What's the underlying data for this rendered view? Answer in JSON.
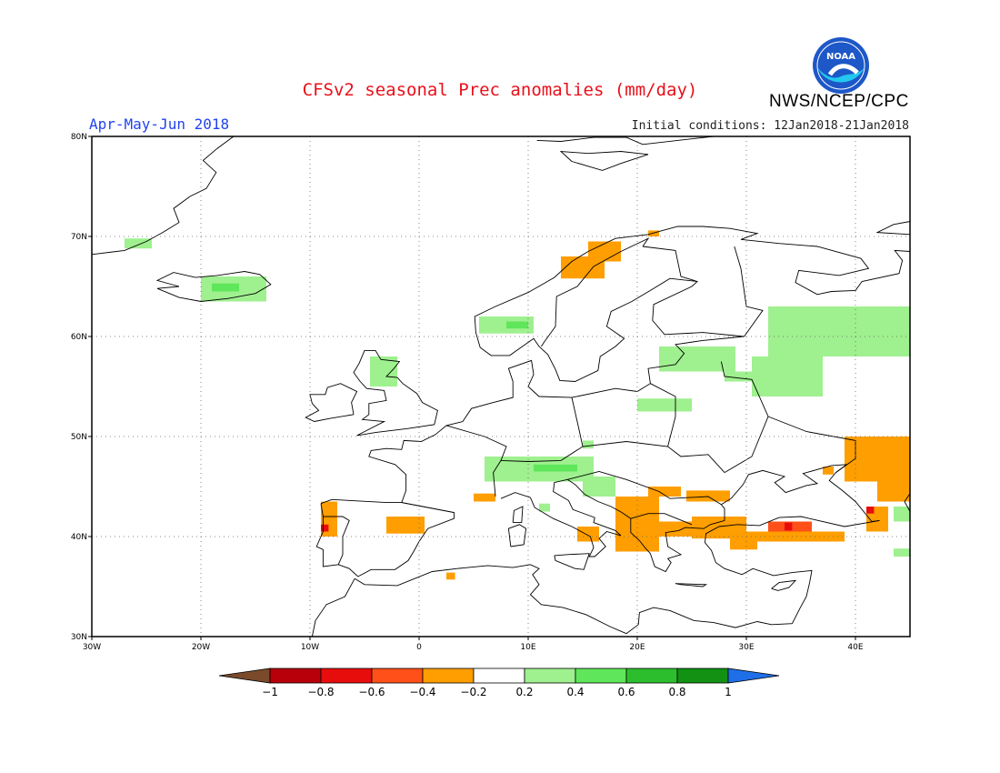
{
  "header": {
    "title": "CFSv2 seasonal Prec anomalies (mm/day)",
    "season": "Apr-May-Jun 2018",
    "initial_conditions": "Initial conditions: 12Jan2018-21Jan2018",
    "agency": "NWS/NCEP/CPC",
    "logo_text": "NOAA"
  },
  "map": {
    "lon_range": [
      -30,
      45
    ],
    "lat_range": [
      30,
      80
    ],
    "lon_ticks": [
      {
        "lon": -30,
        "label": "30W"
      },
      {
        "lon": -20,
        "label": "20W"
      },
      {
        "lon": -10,
        "label": "10W"
      },
      {
        "lon": 0,
        "label": "0"
      },
      {
        "lon": 10,
        "label": "10E"
      },
      {
        "lon": 20,
        "label": "20E"
      },
      {
        "lon": 30,
        "label": "30E"
      },
      {
        "lon": 40,
        "label": "40E"
      }
    ],
    "lat_ticks": [
      {
        "lat": 30,
        "label": "30N"
      },
      {
        "lat": 40,
        "label": "40N"
      },
      {
        "lat": 50,
        "label": "50N"
      },
      {
        "lat": 60,
        "label": "60N"
      },
      {
        "lat": 70,
        "label": "70N"
      },
      {
        "lat": 80,
        "label": "80N"
      }
    ],
    "grid": "dotted"
  },
  "colorbar": {
    "labels": [
      "-1",
      "-0.8",
      "-0.6",
      "-0.4",
      "-0.2",
      "0.2",
      "0.4",
      "0.6",
      "0.8",
      "1"
    ],
    "colors": [
      "#7a4a2a",
      "#b8000b",
      "#e80d0d",
      "#ff5019",
      "#ff9e00",
      "#ffffff",
      "#9ff08f",
      "#5fe65a",
      "#2dbe2d",
      "#129112",
      "#1f6fe8"
    ]
  },
  "legend_classes": {
    "dry1": "#ff9e00",
    "dry2": "#ff5019",
    "dry3": "#e80d0d",
    "wet1": "#9ff08f",
    "wet2": "#5fe65a"
  },
  "anomaly_patches": [
    {
      "cls": "wet1",
      "lon": [
        -27,
        -24.5
      ],
      "lat": [
        68.8,
        69.8
      ]
    },
    {
      "cls": "wet1",
      "lon": [
        -20,
        -14
      ],
      "lat": [
        63.5,
        66
      ]
    },
    {
      "cls": "wet2",
      "lon": [
        -19,
        -16.5
      ],
      "lat": [
        64.5,
        65.3
      ]
    },
    {
      "cls": "wet1",
      "lon": [
        5.5,
        10.5
      ],
      "lat": [
        60.3,
        62
      ]
    },
    {
      "cls": "wet2",
      "lon": [
        8,
        10
      ],
      "lat": [
        60.8,
        61.5
      ]
    },
    {
      "cls": "dry1",
      "lon": [
        13,
        17
      ],
      "lat": [
        65.8,
        68
      ]
    },
    {
      "cls": "dry1",
      "lon": [
        15.5,
        18.5
      ],
      "lat": [
        67.5,
        69.5
      ]
    },
    {
      "cls": "dry1",
      "lon": [
        21,
        22
      ],
      "lat": [
        70,
        70.6
      ]
    },
    {
      "cls": "wet1",
      "lon": [
        -4.5,
        -2
      ],
      "lat": [
        55,
        58
      ]
    },
    {
      "cls": "wet1",
      "lon": [
        22,
        29
      ],
      "lat": [
        56.5,
        59
      ]
    },
    {
      "cls": "wet1",
      "lon": [
        20,
        25
      ],
      "lat": [
        52.5,
        53.8
      ]
    },
    {
      "cls": "wet1",
      "lon": [
        28,
        32
      ],
      "lat": [
        55.5,
        56.5
      ]
    },
    {
      "cls": "wet1",
      "lon": [
        30.5,
        37
      ],
      "lat": [
        54,
        58
      ]
    },
    {
      "cls": "wet1",
      "lon": [
        32,
        45
      ],
      "lat": [
        58,
        63
      ]
    },
    {
      "cls": "wet1",
      "lon": [
        6,
        16
      ],
      "lat": [
        45.5,
        48
      ]
    },
    {
      "cls": "wet1",
      "lon": [
        15,
        18
      ],
      "lat": [
        44,
        46
      ]
    },
    {
      "cls": "wet1",
      "lon": [
        15,
        16
      ],
      "lat": [
        48.8,
        49.6
      ]
    },
    {
      "cls": "wet1",
      "lon": [
        11,
        12
      ],
      "lat": [
        42.5,
        43.3
      ]
    },
    {
      "cls": "wet2",
      "lon": [
        10.5,
        14.5
      ],
      "lat": [
        46.5,
        47.2
      ]
    },
    {
      "cls": "dry1",
      "lon": [
        -9,
        -7.5
      ],
      "lat": [
        40,
        43.5
      ]
    },
    {
      "cls": "dry3",
      "lon": [
        -9,
        -8.3
      ],
      "lat": [
        40.5,
        41.2
      ]
    },
    {
      "cls": "dry1",
      "lon": [
        -3,
        0.5
      ],
      "lat": [
        40.3,
        42
      ]
    },
    {
      "cls": "dry1",
      "lon": [
        5,
        7
      ],
      "lat": [
        43.5,
        44.3
      ]
    },
    {
      "cls": "dry1",
      "lon": [
        2.5,
        3.3
      ],
      "lat": [
        35.7,
        36.4
      ]
    },
    {
      "cls": "dry1",
      "lon": [
        14.5,
        16.5
      ],
      "lat": [
        39.5,
        41
      ]
    },
    {
      "cls": "dry1",
      "lon": [
        18,
        22
      ],
      "lat": [
        38.5,
        44
      ]
    },
    {
      "cls": "dry1",
      "lon": [
        21,
        24
      ],
      "lat": [
        44,
        45
      ]
    },
    {
      "cls": "dry1",
      "lon": [
        22,
        26
      ],
      "lat": [
        40,
        41.5
      ]
    },
    {
      "cls": "dry1",
      "lon": [
        24.5,
        28.5
      ],
      "lat": [
        43.5,
        44.6
      ]
    },
    {
      "cls": "dry1",
      "lon": [
        25,
        30
      ],
      "lat": [
        39.8,
        42
      ]
    },
    {
      "cls": "dry1",
      "lon": [
        28.5,
        31
      ],
      "lat": [
        38.7,
        40
      ]
    },
    {
      "cls": "dry1",
      "lon": [
        29.5,
        39
      ],
      "lat": [
        39.5,
        40.5
      ]
    },
    {
      "cls": "dry2",
      "lon": [
        32,
        36
      ],
      "lat": [
        40.5,
        41.5
      ]
    },
    {
      "cls": "dry3",
      "lon": [
        33.5,
        34.2
      ],
      "lat": [
        40.6,
        41.4
      ]
    },
    {
      "cls": "dry1",
      "lon": [
        37,
        38
      ],
      "lat": [
        46.2,
        47
      ]
    },
    {
      "cls": "dry1",
      "lon": [
        39,
        45
      ],
      "lat": [
        45.5,
        50
      ]
    },
    {
      "cls": "dry1",
      "lon": [
        42,
        45
      ],
      "lat": [
        43.5,
        46
      ]
    },
    {
      "cls": "dry1",
      "lon": [
        41,
        43
      ],
      "lat": [
        40.5,
        43
      ]
    },
    {
      "cls": "dry3",
      "lon": [
        41,
        41.7
      ],
      "lat": [
        42.3,
        43
      ]
    },
    {
      "cls": "wet1",
      "lon": [
        43.5,
        45
      ],
      "lat": [
        41.5,
        43
      ]
    },
    {
      "cls": "wet1",
      "lon": [
        43.5,
        45
      ],
      "lat": [
        38,
        38.8
      ]
    }
  ]
}
